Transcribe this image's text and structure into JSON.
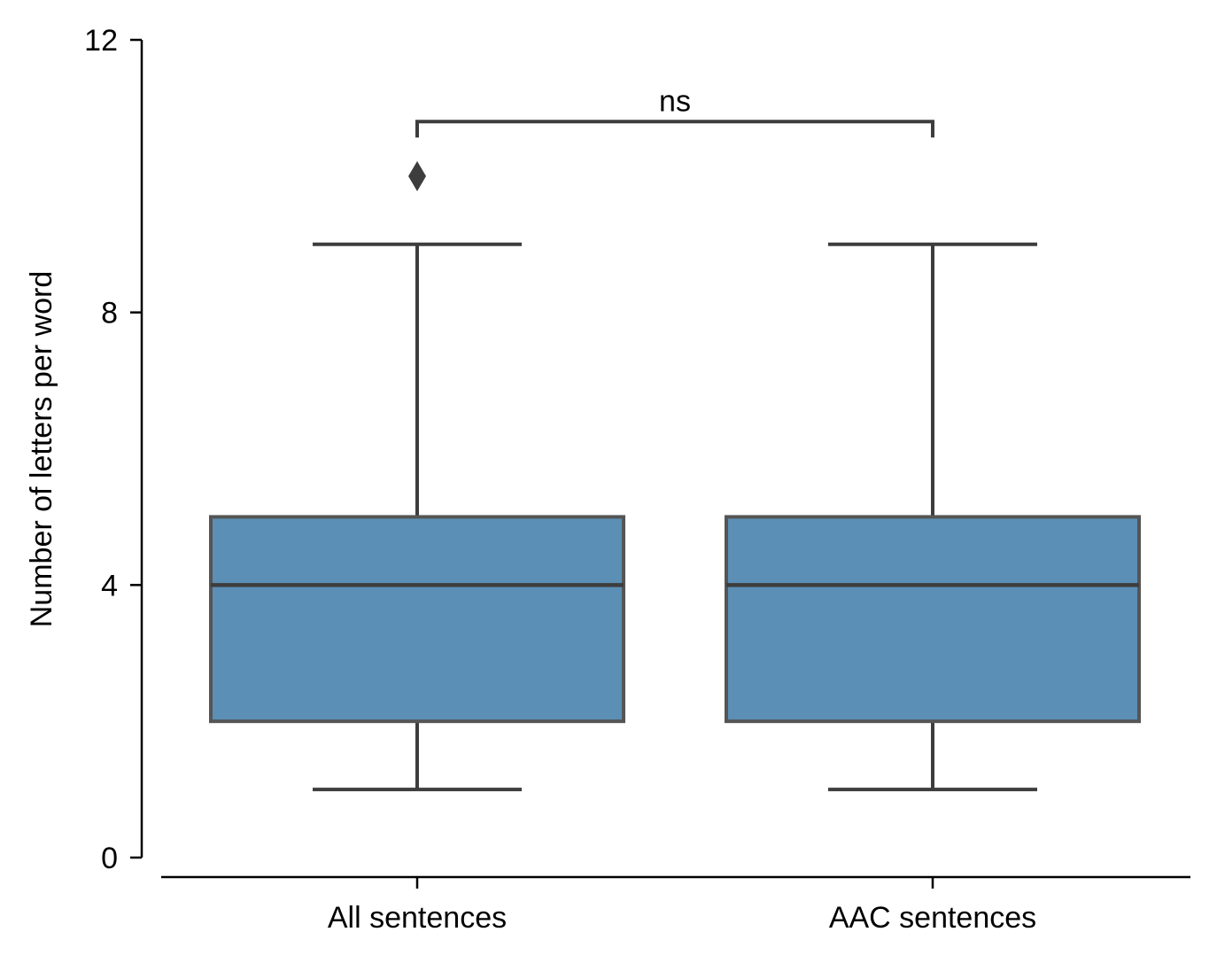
{
  "chart_data": {
    "type": "box",
    "categories": [
      "All sentences",
      "AAC sentences"
    ],
    "ylabel": "Number of letters per word",
    "xlabel": "",
    "ylim": [
      0,
      12
    ],
    "yticks": [
      0,
      4,
      8,
      12
    ],
    "ytick_labels": [
      "0",
      "4",
      "8",
      "12"
    ],
    "grid": false,
    "box_color": "#5b8fb5",
    "edge_color": "#555555",
    "line_color": "#3d3d3d",
    "boxes": [
      {
        "category": "All sentences",
        "whisker_low": 1,
        "q1": 2,
        "median": 4,
        "q3": 5,
        "whisker_high": 9,
        "outliers": [
          10
        ]
      },
      {
        "category": "AAC sentences",
        "whisker_low": 1,
        "q1": 2,
        "median": 4,
        "q3": 5,
        "whisker_high": 9,
        "outliers": []
      }
    ],
    "annotation": {
      "label": "ns",
      "from": "All sentences",
      "to": "AAC sentences",
      "y": 10.8
    }
  }
}
